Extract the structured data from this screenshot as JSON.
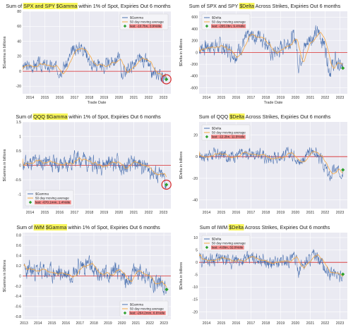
{
  "colors": {
    "gamma_line": "#4c72b0",
    "moving_avg": "#f5a742",
    "zero_line": "#d62728",
    "last_marker": "#2ca02c",
    "last_label_bg": "#f28a8a",
    "highlight": "#f7f55a",
    "plot_bg": "#eaeaf2",
    "grid": "#ffffff",
    "circle": "#d62728"
  },
  "chart_data": [
    {
      "type": "line",
      "title_parts": [
        "Sum of ",
        "SPX and SPY",
        " ",
        "$Gamma",
        " within 1% of Spot, Expiries Out 6 months"
      ],
      "highlight_parts": [
        1,
        3
      ],
      "xlabel": "Trade Date",
      "ylabel": "$Gamma in billions",
      "x_ticks": [
        "2014",
        "2015",
        "2016",
        "2017",
        "2018",
        "2019",
        "2020",
        "2021",
        "2022",
        "2023"
      ],
      "x_range": [
        2013.5,
        2023.5
      ],
      "ylim": [
        -30,
        80
      ],
      "y_ticks": [
        -20,
        0,
        20,
        40,
        60,
        80
      ],
      "legend": {
        "series_name": "$Gamma",
        "ma_name": "50 day moving average",
        "last_label": "last: -10.7bn, 3.9%tile",
        "position": "top-right"
      },
      "last_value": -10.7,
      "circle_last": true,
      "series": {
        "start": 2013.5,
        "end": 2023.2,
        "base": [
          [
            2013.5,
            5
          ],
          [
            2014.5,
            9
          ],
          [
            2015.3,
            6
          ],
          [
            2016.0,
            3
          ],
          [
            2016.5,
            10
          ],
          [
            2017.0,
            30
          ],
          [
            2017.5,
            34
          ],
          [
            2017.9,
            22
          ],
          [
            2018.2,
            4
          ],
          [
            2018.6,
            12
          ],
          [
            2019.0,
            4
          ],
          [
            2019.5,
            14
          ],
          [
            2020.0,
            18
          ],
          [
            2020.2,
            -3
          ],
          [
            2020.6,
            3
          ],
          [
            2021.0,
            10
          ],
          [
            2021.5,
            16
          ],
          [
            2021.9,
            12
          ],
          [
            2022.2,
            -5
          ],
          [
            2022.6,
            -3
          ],
          [
            2022.9,
            -6
          ],
          [
            2023.2,
            -10.7
          ]
        ],
        "noise": 14,
        "seed": 3
      }
    },
    {
      "type": "line",
      "title_parts": [
        "Sum of SPX and SPY ",
        "$Delta",
        " Across Strikes, Expiries Out 6 months"
      ],
      "highlight_parts": [
        1
      ],
      "xlabel": "Trade Date",
      "ylabel": "$Delta in billions",
      "x_ticks": [
        "2014",
        "2015",
        "2016",
        "2017",
        "2018",
        "2019",
        "2020",
        "2021",
        "2022",
        "2023"
      ],
      "x_range": [
        2013.5,
        2023.5
      ],
      "ylim": [
        -700,
        700
      ],
      "y_ticks": [
        -600,
        -400,
        -200,
        0,
        200,
        400,
        600
      ],
      "legend": {
        "series_name": "$Delta",
        "ma_name": "50 day moving average",
        "last_label": "last: -265.0bn, 9.4%tile",
        "position": "top-left"
      },
      "last_value": -265,
      "circle_last": false,
      "series": {
        "start": 2013.5,
        "end": 2023.2,
        "base": [
          [
            2013.5,
            80
          ],
          [
            2014.5,
            120
          ],
          [
            2015.5,
            40
          ],
          [
            2016.0,
            -20
          ],
          [
            2016.5,
            180
          ],
          [
            2017.0,
            260
          ],
          [
            2017.6,
            300
          ],
          [
            2018.0,
            200
          ],
          [
            2018.4,
            -40
          ],
          [
            2018.9,
            40
          ],
          [
            2019.5,
            200
          ],
          [
            2020.0,
            260
          ],
          [
            2020.2,
            -200
          ],
          [
            2020.6,
            80
          ],
          [
            2021.0,
            260
          ],
          [
            2021.6,
            340
          ],
          [
            2022.0,
            100
          ],
          [
            2022.3,
            -300
          ],
          [
            2022.7,
            -150
          ],
          [
            2023.0,
            -250
          ],
          [
            2023.2,
            -265
          ]
        ],
        "noise": 220,
        "seed": 7
      }
    },
    {
      "type": "line",
      "title_parts": [
        "Sum of ",
        "QQQ",
        " ",
        "$Gamma",
        " within 1% of Spot, Expiries Out 6 months"
      ],
      "highlight_parts": [
        1,
        3
      ],
      "xlabel": "",
      "ylabel": "$Gamma in billions",
      "x_ticks": [
        "2014",
        "2015",
        "2016",
        "2017",
        "2018",
        "2019",
        "2020",
        "2021",
        "2022",
        "2023"
      ],
      "x_range": [
        2013.5,
        2023.5
      ],
      "ylim": [
        -1.5,
        1.5
      ],
      "y_ticks": [
        -1.0,
        -0.5,
        0.0,
        0.5,
        1.0,
        1.5
      ],
      "legend": {
        "series_name": "$Gamma",
        "ma_name": "50 day moving average",
        "last_label": "last: -670.1mm, 1.4%tile",
        "position": "bottom-left"
      },
      "last_value": -0.67,
      "circle_last": true,
      "series": {
        "start": 2013.5,
        "end": 2023.2,
        "base": [
          [
            2013.5,
            0.05
          ],
          [
            2014.5,
            0.12
          ],
          [
            2015.5,
            0.08
          ],
          [
            2016.2,
            0.02
          ],
          [
            2017.0,
            0.2
          ],
          [
            2017.6,
            0.25
          ],
          [
            2018.2,
            0.0
          ],
          [
            2018.8,
            0.05
          ],
          [
            2019.5,
            0.12
          ],
          [
            2020.0,
            0.1
          ],
          [
            2020.2,
            -0.2
          ],
          [
            2020.8,
            0.0
          ],
          [
            2021.5,
            0.05
          ],
          [
            2022.0,
            -0.15
          ],
          [
            2022.5,
            -0.3
          ],
          [
            2023.0,
            -0.45
          ],
          [
            2023.2,
            -0.67
          ]
        ],
        "noise": 0.45,
        "seed": 11
      }
    },
    {
      "type": "line",
      "title_parts": [
        "Sum of QQQ ",
        "$Delta",
        " Across Strikes, Expiries Out 6 months"
      ],
      "highlight_parts": [
        1
      ],
      "xlabel": "",
      "ylabel": "$Delta in billions",
      "x_ticks": [
        "2014",
        "2015",
        "2016",
        "2017",
        "2018",
        "2019",
        "2020",
        "2021",
        "2022",
        "2023"
      ],
      "x_range": [
        2013.5,
        2023.5
      ],
      "ylim": [
        -48,
        32
      ],
      "y_ticks": [
        -40,
        -20,
        0,
        20
      ],
      "legend": {
        "series_name": "$Delta",
        "ma_name": "50 day moving average",
        "last_label": "last: -12.2bn, 11.6%tile",
        "position": "top-left"
      },
      "last_value": -12.2,
      "circle_last": false,
      "series": {
        "start": 2013.5,
        "end": 2023.2,
        "base": [
          [
            2013.5,
            1
          ],
          [
            2014.5,
            2
          ],
          [
            2015.5,
            1
          ],
          [
            2016.5,
            2
          ],
          [
            2017.5,
            3
          ],
          [
            2018.2,
            -2
          ],
          [
            2018.8,
            1
          ],
          [
            2019.5,
            2
          ],
          [
            2020.0,
            3
          ],
          [
            2020.2,
            -6
          ],
          [
            2020.8,
            2
          ],
          [
            2021.3,
            6
          ],
          [
            2021.7,
            -4
          ],
          [
            2022.0,
            -10
          ],
          [
            2022.3,
            -20
          ],
          [
            2022.6,
            -12
          ],
          [
            2022.9,
            -15
          ],
          [
            2023.2,
            -12.2
          ]
        ],
        "noise": 9,
        "seed": 17
      }
    },
    {
      "type": "line",
      "title_parts": [
        "Sum of ",
        "IWM",
        " ",
        "$Gamma",
        " within 1% of Spot, Expiries Out 6 months"
      ],
      "highlight_parts": [
        1,
        3
      ],
      "xlabel": "",
      "ylabel": "$Gamma in billions",
      "x_ticks": [
        "2013",
        "2014",
        "2015",
        "2016",
        "2017",
        "2018",
        "2019",
        "2020",
        "2021",
        "2022",
        "2023"
      ],
      "x_range": [
        2012.9,
        2023.5
      ],
      "ylim": [
        -0.85,
        0.85
      ],
      "y_ticks": [
        -0.8,
        -0.6,
        -0.4,
        -0.2,
        0.0,
        0.2,
        0.4,
        0.6,
        0.8
      ],
      "legend": {
        "series_name": "$Gamma",
        "ma_name": "50 day moving average",
        "last_label": "last: -264.2mm, 6.6%tile",
        "position": "bottom-right"
      },
      "last_value": -0.264,
      "circle_last": false,
      "series": {
        "start": 2013.0,
        "end": 2023.2,
        "base": [
          [
            2013.0,
            0.08
          ],
          [
            2014.0,
            0.1
          ],
          [
            2015.0,
            0.05
          ],
          [
            2016.0,
            0.05
          ],
          [
            2017.0,
            0.18
          ],
          [
            2017.6,
            0.22
          ],
          [
            2018.2,
            0.02
          ],
          [
            2018.9,
            0.05
          ],
          [
            2019.5,
            0.12
          ],
          [
            2020.0,
            0.1
          ],
          [
            2020.2,
            -0.15
          ],
          [
            2020.8,
            0.05
          ],
          [
            2021.3,
            0.12
          ],
          [
            2021.8,
            0.0
          ],
          [
            2022.3,
            -0.12
          ],
          [
            2022.8,
            -0.1
          ],
          [
            2023.2,
            -0.264
          ]
        ],
        "noise": 0.28,
        "seed": 23
      }
    },
    {
      "type": "line",
      "title_parts": [
        "Sum of IWM ",
        "$Delta",
        " Across Strikes, Expiries Out 6 months"
      ],
      "highlight_parts": [
        1
      ],
      "xlabel": "",
      "ylabel": "$Delta in billions",
      "x_ticks": [
        "2014",
        "2015",
        "2016",
        "2017",
        "2018",
        "2019",
        "2020",
        "2021",
        "2022",
        "2023"
      ],
      "x_range": [
        2013.5,
        2023.5
      ],
      "ylim": [
        -23,
        12
      ],
      "y_ticks": [
        -20,
        -15,
        -10,
        -5,
        0,
        5,
        10
      ],
      "legend": {
        "series_name": "$Delta",
        "ma_name": "50 day moving average",
        "last_label": "last: -4.8bn, 32.0%tile",
        "position": "top-left"
      },
      "last_value": -4.8,
      "circle_last": false,
      "series": {
        "start": 2013.5,
        "end": 2023.2,
        "base": [
          [
            2013.5,
            1
          ],
          [
            2014.5,
            1.5
          ],
          [
            2015.5,
            0
          ],
          [
            2016.5,
            1
          ],
          [
            2017.5,
            2
          ],
          [
            2018.2,
            -1
          ],
          [
            2018.8,
            0
          ],
          [
            2019.5,
            1
          ],
          [
            2020.0,
            1.5
          ],
          [
            2020.2,
            -3
          ],
          [
            2020.8,
            1
          ],
          [
            2021.3,
            2.5
          ],
          [
            2021.8,
            -1
          ],
          [
            2022.2,
            -5
          ],
          [
            2022.6,
            -4
          ],
          [
            2023.0,
            -6
          ],
          [
            2023.2,
            -4.8
          ]
        ],
        "noise": 4.2,
        "seed": 29
      }
    }
  ]
}
